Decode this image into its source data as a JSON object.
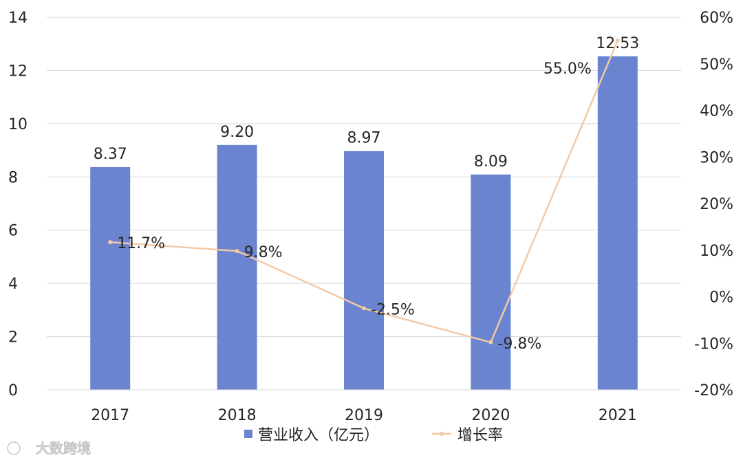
{
  "chart_data": {
    "type": "bar",
    "categories": [
      "2017",
      "2018",
      "2019",
      "2020",
      "2021"
    ],
    "series": [
      {
        "name": "营业收入（亿元）",
        "type": "bar",
        "axis": "left",
        "values": [
          8.37,
          9.2,
          8.97,
          8.09,
          12.53
        ],
        "labels": [
          "8.37",
          "9.20",
          "8.97",
          "8.09",
          "12.53"
        ],
        "color": "#6a84d0"
      },
      {
        "name": "增长率",
        "type": "line",
        "axis": "right",
        "values": [
          11.7,
          9.8,
          -2.5,
          -9.8,
          55.0
        ],
        "labels": [
          "11.7%",
          "9.8%",
          "-2.5%",
          "-9.8%",
          "55.0%"
        ],
        "color": "#f5c9a5"
      }
    ],
    "left_axis": {
      "ylim": [
        0,
        14
      ],
      "ticks": [
        0,
        2,
        4,
        6,
        8,
        10,
        12,
        14
      ],
      "tick_labels": [
        "0",
        "2",
        "4",
        "6",
        "8",
        "10",
        "12",
        "14"
      ]
    },
    "right_axis": {
      "ylim": [
        -20,
        60
      ],
      "ticks": [
        -20,
        -10,
        0,
        10,
        20,
        30,
        40,
        50,
        60
      ],
      "tick_labels": [
        "-20%",
        "-10%",
        "0%",
        "10%",
        "20%",
        "30%",
        "40%",
        "50%",
        "60%"
      ]
    },
    "grid": true,
    "legend_position": "bottom",
    "title": "",
    "xlabel": "",
    "ylabel": ""
  },
  "watermark": {
    "text": "大数跨境"
  },
  "colors": {
    "gridline": "#d9d9d9",
    "text": "#262626"
  }
}
